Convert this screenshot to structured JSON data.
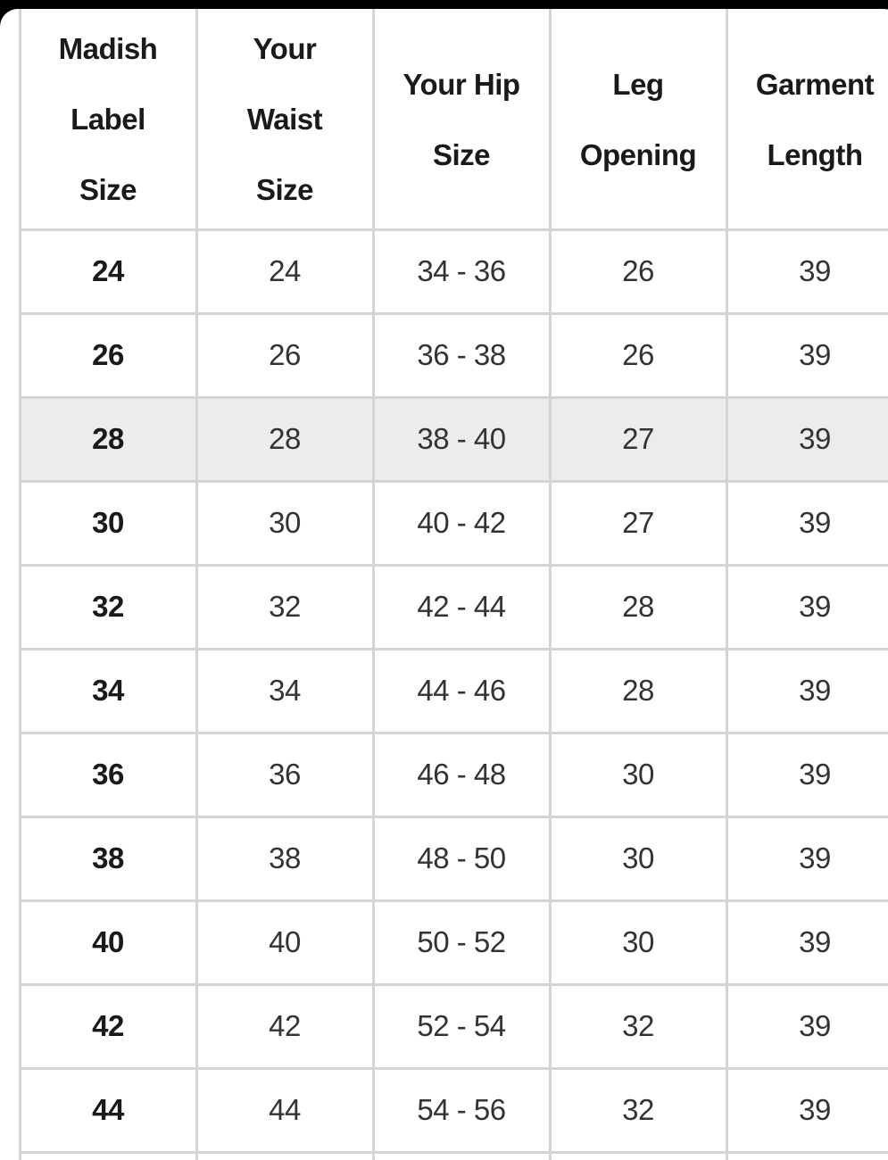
{
  "table": {
    "header": [
      [
        "Madish",
        "Label",
        "Size"
      ],
      [
        "Your",
        "Waist",
        "Size"
      ],
      [
        "Your Hip",
        "Size"
      ],
      [
        "Leg",
        "Opening"
      ],
      [
        "Garment",
        "Length"
      ]
    ],
    "rows": [
      [
        "24",
        "24",
        "34 - 36",
        "26",
        "39"
      ],
      [
        "26",
        "26",
        "36 - 38",
        "26",
        "39"
      ],
      [
        "28",
        "28",
        "38 - 40",
        "27",
        "39"
      ],
      [
        "30",
        "30",
        "40 - 42",
        "27",
        "39"
      ],
      [
        "32",
        "32",
        "42 - 44",
        "28",
        "39"
      ],
      [
        "34",
        "34",
        "44 - 46",
        "28",
        "39"
      ],
      [
        "36",
        "36",
        "46 - 48",
        "30",
        "39"
      ],
      [
        "38",
        "38",
        "48 - 50",
        "30",
        "39"
      ],
      [
        "40",
        "40",
        "50 - 52",
        "30",
        "39"
      ],
      [
        "42",
        "42",
        "52 - 54",
        "32",
        "39"
      ],
      [
        "44",
        "44",
        "54 - 56",
        "32",
        "39"
      ]
    ]
  }
}
